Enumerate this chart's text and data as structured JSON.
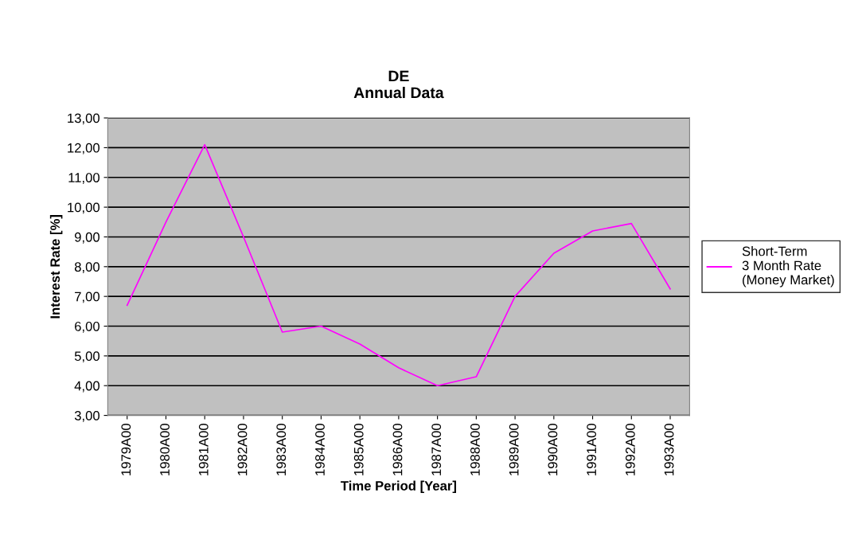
{
  "chart_data": {
    "type": "line",
    "title": "DE\nAnnual Data",
    "xlabel": "Time Period [Year]",
    "ylabel": "Interest Rate [%]",
    "categories": [
      "1979A00",
      "1980A00",
      "1981A00",
      "1982A00",
      "1983A00",
      "1984A00",
      "1985A00",
      "1986A00",
      "1987A00",
      "1988A00",
      "1989A00",
      "1990A00",
      "1991A00",
      "1992A00",
      "1993A00"
    ],
    "series": [
      {
        "name": "Short-Term\n3 Month Rate\n(Money Market)",
        "color": "#ff00ff",
        "values": [
          6.7,
          9.5,
          12.1,
          9.0,
          5.8,
          6.0,
          5.4,
          4.6,
          4.0,
          4.3,
          7.0,
          8.45,
          9.2,
          9.45,
          7.25
        ]
      }
    ],
    "ylim": [
      3,
      13
    ],
    "yticks": [
      {
        "value": 3,
        "label": "3,00"
      },
      {
        "value": 4,
        "label": "4,00"
      },
      {
        "value": 5,
        "label": "5,00"
      },
      {
        "value": 6,
        "label": "6,00"
      },
      {
        "value": 7,
        "label": "7,00"
      },
      {
        "value": 8,
        "label": "8,00"
      },
      {
        "value": 9,
        "label": "9,00"
      },
      {
        "value": 10,
        "label": "10,00"
      },
      {
        "value": 11,
        "label": "11,00"
      },
      {
        "value": 12,
        "label": "12,00"
      },
      {
        "value": 13,
        "label": "13,00"
      }
    ],
    "grid": "y",
    "legend": "right",
    "marker": "none",
    "line_style": "solid"
  }
}
